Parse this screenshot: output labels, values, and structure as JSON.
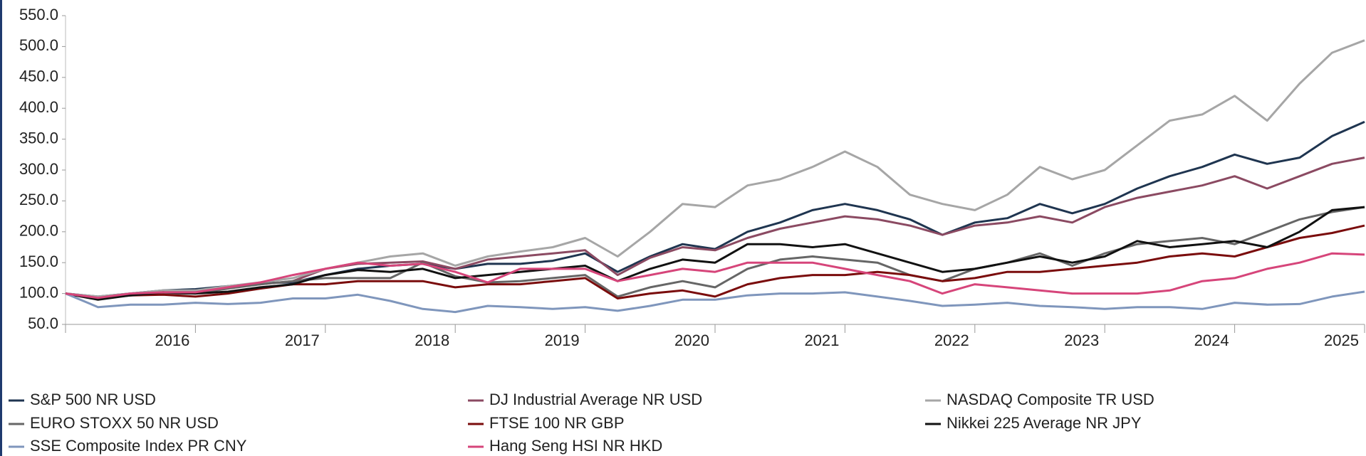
{
  "chart_data": {
    "type": "line",
    "x": [
      2015,
      2015.25,
      2015.5,
      2015.75,
      2016,
      2016.25,
      2016.5,
      2016.75,
      2017,
      2017.25,
      2017.5,
      2017.75,
      2018,
      2018.25,
      2018.5,
      2018.75,
      2019,
      2019.25,
      2019.5,
      2019.75,
      2020,
      2020.25,
      2020.5,
      2020.75,
      2021,
      2021.25,
      2021.5,
      2021.75,
      2022,
      2022.25,
      2022.5,
      2022.75,
      2023,
      2023.25,
      2023.5,
      2023.75,
      2024,
      2024.25,
      2024.5,
      2024.75,
      2025
    ],
    "xlim": [
      2015,
      2025
    ],
    "xticks": [
      2016,
      2017,
      2018,
      2019,
      2020,
      2021,
      2022,
      2023,
      2024,
      2025
    ],
    "ylim": [
      50,
      550
    ],
    "yticks": [
      {
        "value": 50,
        "label": "50.0"
      },
      {
        "value": 100,
        "label": "100.0"
      },
      {
        "value": 150,
        "label": "150.0"
      },
      {
        "value": 200,
        "label": "200.0"
      },
      {
        "value": 250,
        "label": "250.0"
      },
      {
        "value": 300,
        "label": "300.0"
      },
      {
        "value": 350,
        "label": "350.0"
      },
      {
        "value": 400,
        "label": "400.0"
      },
      {
        "value": 450,
        "label": "450.0"
      },
      {
        "value": 500,
        "label": "500.0"
      },
      {
        "value": 550,
        "label": "550.0"
      }
    ],
    "series": [
      {
        "name": "S&P 500 NR USD",
        "color": "#1f3550",
        "values": [
          100,
          95,
          100,
          105,
          107,
          112,
          117,
          118,
          130,
          140,
          145,
          148,
          140,
          148,
          148,
          153,
          165,
          135,
          160,
          180,
          172,
          200,
          215,
          235,
          245,
          235,
          220,
          195,
          215,
          222,
          245,
          230,
          245,
          270,
          290,
          305,
          325,
          310,
          320,
          355,
          378
        ]
      },
      {
        "name": "DJ Industrial Average NR USD",
        "color": "#8b4a62",
        "values": [
          100,
          93,
          98,
          100,
          105,
          110,
          115,
          120,
          140,
          148,
          150,
          152,
          140,
          155,
          160,
          165,
          170,
          130,
          158,
          175,
          170,
          190,
          205,
          215,
          225,
          220,
          210,
          195,
          210,
          215,
          225,
          215,
          240,
          255,
          265,
          275,
          290,
          270,
          290,
          310,
          320
        ]
      },
      {
        "name": "NASDAQ Composite TR USD",
        "color": "#a6a6a6",
        "values": [
          100,
          95,
          100,
          105,
          105,
          112,
          118,
          125,
          140,
          150,
          160,
          165,
          145,
          160,
          168,
          175,
          190,
          160,
          200,
          245,
          240,
          275,
          285,
          305,
          330,
          305,
          260,
          245,
          235,
          260,
          305,
          285,
          300,
          340,
          380,
          390,
          420,
          380,
          440,
          490,
          510
        ]
      },
      {
        "name": "EURO STOXX 50 NR USD",
        "color": "#666666",
        "values": [
          100,
          92,
          98,
          100,
          100,
          108,
          115,
          120,
          125,
          125,
          125,
          150,
          128,
          118,
          120,
          125,
          130,
          95,
          110,
          120,
          110,
          140,
          155,
          160,
          155,
          150,
          130,
          120,
          140,
          150,
          165,
          145,
          165,
          180,
          185,
          190,
          180,
          200,
          220,
          232,
          240
        ]
      },
      {
        "name": "FTSE 100 NR GBP",
        "color": "#7a0c0c",
        "values": [
          100,
          92,
          97,
          98,
          95,
          100,
          108,
          115,
          115,
          120,
          120,
          120,
          110,
          115,
          115,
          120,
          125,
          92,
          100,
          105,
          95,
          115,
          125,
          130,
          130,
          135,
          130,
          120,
          125,
          135,
          135,
          140,
          145,
          150,
          160,
          165,
          160,
          175,
          190,
          198,
          210
        ]
      },
      {
        "name": "Nikkei 225 Average NR JPY",
        "color": "#111111",
        "values": [
          100,
          90,
          97,
          102,
          100,
          103,
          110,
          115,
          130,
          138,
          135,
          140,
          125,
          130,
          135,
          140,
          145,
          120,
          140,
          155,
          150,
          180,
          180,
          175,
          180,
          165,
          150,
          135,
          140,
          150,
          160,
          150,
          160,
          185,
          175,
          180,
          185,
          175,
          200,
          235,
          240
        ]
      },
      {
        "name": "SSE Composite Index PR CNY",
        "color": "#7f96bc",
        "values": [
          100,
          78,
          82,
          82,
          85,
          83,
          85,
          92,
          92,
          98,
          88,
          75,
          70,
          80,
          78,
          75,
          78,
          72,
          80,
          90,
          90,
          97,
          100,
          100,
          102,
          95,
          88,
          80,
          82,
          85,
          80,
          78,
          75,
          78,
          78,
          75,
          85,
          82,
          83,
          95,
          103
        ]
      },
      {
        "name": "Hang Seng HSI NR HKD",
        "color": "#d6457a",
        "values": [
          100,
          93,
          100,
          102,
          102,
          110,
          118,
          130,
          140,
          150,
          145,
          148,
          135,
          118,
          140,
          140,
          140,
          120,
          130,
          140,
          135,
          150,
          150,
          150,
          140,
          130,
          120,
          100,
          115,
          110,
          105,
          100,
          100,
          100,
          105,
          120,
          125,
          140,
          150,
          165,
          163
        ]
      }
    ]
  }
}
